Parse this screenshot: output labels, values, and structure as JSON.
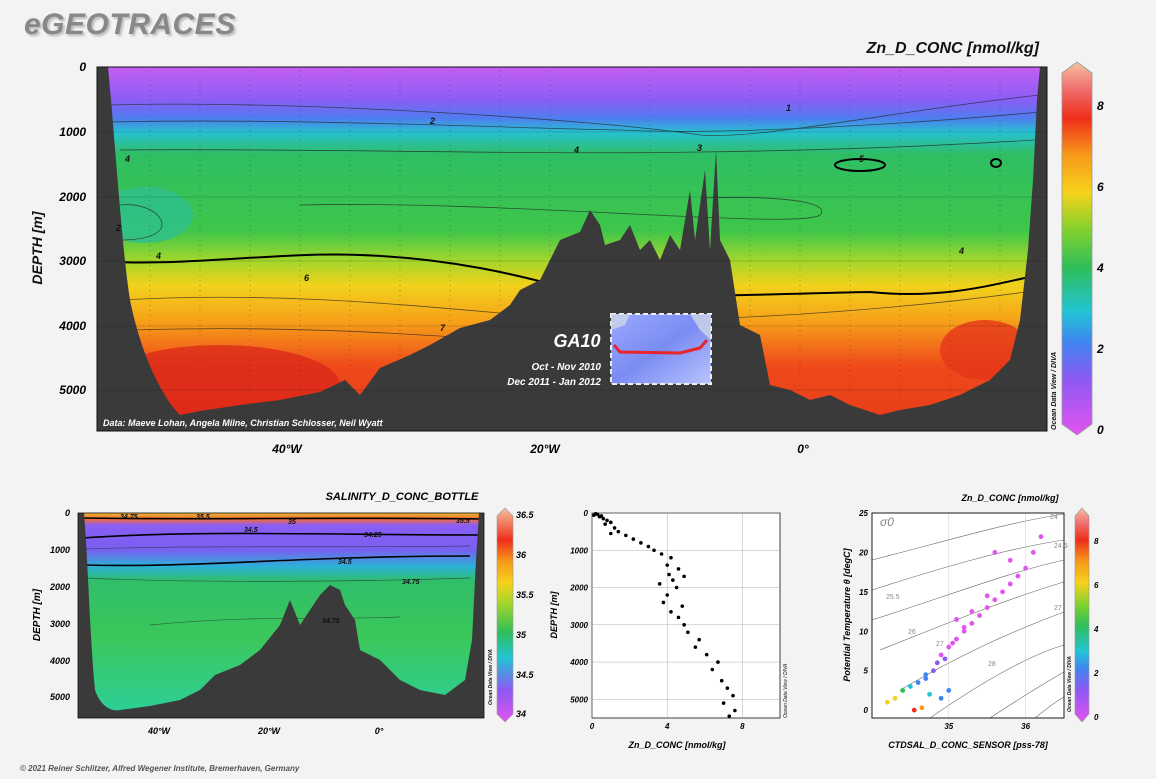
{
  "brand": "eGEOTRACES",
  "footer": "© 2021 Reiner Schlitzer, Alfred Wegener Institute, Bremerhaven, Germany",
  "side_credit": "Ocean Data View / DIVA",
  "colors": {
    "seafloor": "#3a3a3a",
    "scale": [
      "#e254f0",
      "#9c55f3",
      "#4f7cf0",
      "#27c1e0",
      "#2ec06b",
      "#46c83a",
      "#a4d72a",
      "#f6d21c",
      "#f7a019",
      "#ef3a1a",
      "#f06a6a",
      "#f4b8b8"
    ]
  },
  "main": {
    "title": "Zn_D_CONC [nmol/kg]",
    "ylabel": "DEPTH [m]",
    "credit": "Data: Maeve Lohan, Angela Milne, Christian Schlosser, Neil Wyatt",
    "inset": {
      "cruise": "GA10",
      "date1": "Oct - Nov 2010",
      "date2": "Dec 2011 - Jan 2012"
    },
    "contour_labels": [
      "1",
      "2",
      "3",
      "4",
      "4",
      "4",
      "4",
      "5",
      "6",
      "7",
      "2"
    ]
  },
  "chart_data": [
    {
      "type": "heatmap",
      "title": "Zn_D_CONC [nmol/kg]",
      "xlabel": "",
      "ylabel": "DEPTH [m]",
      "x_ticks": [
        "40°W",
        "20°W",
        "0°"
      ],
      "y_ticks": [
        "0",
        "1000",
        "2000",
        "3000",
        "4000",
        "5000"
      ],
      "ylim": [
        0,
        5600
      ],
      "colorbar": {
        "min": 0,
        "max": 9,
        "ticks": [
          "0",
          "2",
          "4",
          "6",
          "8"
        ]
      }
    },
    {
      "type": "heatmap",
      "title": "SALINITY_D_CONC_BOTTLE",
      "xlabel": "",
      "ylabel": "DEPTH [m]",
      "x_ticks": [
        "40°W",
        "20°W",
        "0°"
      ],
      "y_ticks": [
        "0",
        "1000",
        "2000",
        "3000",
        "4000",
        "5000"
      ],
      "ylim": [
        0,
        5500
      ],
      "colorbar": {
        "min": 34,
        "max": 36.5,
        "ticks": [
          "34",
          "34.5",
          "35",
          "35.5",
          "36",
          "36.5"
        ]
      },
      "contour_labels": [
        "34.75",
        "35",
        "35.5",
        "34.5",
        "34.25",
        "34.5",
        "34.75",
        "34.75",
        "35.5"
      ]
    },
    {
      "type": "scatter",
      "xlabel": "Zn_D_CONC [nmol/kg]",
      "ylabel": "DEPTH [m]",
      "x_ticks": [
        "0",
        "4",
        "8"
      ],
      "y_ticks": [
        "0",
        "1000",
        "2000",
        "3000",
        "4000",
        "5000"
      ],
      "xlim": [
        0,
        10
      ],
      "ylim": [
        0,
        5500
      ],
      "points": [
        [
          0.2,
          20
        ],
        [
          0.3,
          40
        ],
        [
          0.1,
          60
        ],
        [
          0.5,
          80
        ],
        [
          0.4,
          100
        ],
        [
          0.6,
          150
        ],
        [
          0.8,
          200
        ],
        [
          1.0,
          250
        ],
        [
          0.7,
          300
        ],
        [
          1.2,
          400
        ],
        [
          1.4,
          500
        ],
        [
          1.0,
          550
        ],
        [
          1.8,
          600
        ],
        [
          2.2,
          700
        ],
        [
          2.6,
          800
        ],
        [
          3.0,
          900
        ],
        [
          3.3,
          1000
        ],
        [
          3.7,
          1100
        ],
        [
          4.2,
          1200
        ],
        [
          4.0,
          1400
        ],
        [
          4.6,
          1500
        ],
        [
          4.1,
          1650
        ],
        [
          4.9,
          1700
        ],
        [
          4.3,
          1800
        ],
        [
          3.6,
          1900
        ],
        [
          4.5,
          2000
        ],
        [
          4.0,
          2200
        ],
        [
          3.8,
          2400
        ],
        [
          4.8,
          2500
        ],
        [
          4.2,
          2650
        ],
        [
          4.6,
          2800
        ],
        [
          4.9,
          3000
        ],
        [
          5.1,
          3200
        ],
        [
          5.7,
          3400
        ],
        [
          5.5,
          3600
        ],
        [
          6.1,
          3800
        ],
        [
          6.7,
          4000
        ],
        [
          6.4,
          4200
        ],
        [
          6.9,
          4500
        ],
        [
          7.2,
          4700
        ],
        [
          7.5,
          4900
        ],
        [
          7.0,
          5100
        ],
        [
          7.6,
          5300
        ],
        [
          7.3,
          5450
        ]
      ]
    },
    {
      "type": "scatter",
      "title": "Zn_D_CONC [nmol/kg]",
      "xlabel": "CTDSAL_D_CONC_SENSOR [pss-78]",
      "ylabel": "Potential Temperature θ [degC]",
      "sigma_label": "σ0",
      "x_ticks": [
        "35",
        "36"
      ],
      "y_ticks": [
        "0",
        "5",
        "10",
        "15",
        "20",
        "25"
      ],
      "xlim": [
        34.0,
        36.5
      ],
      "ylim": [
        -1,
        25
      ],
      "isopycnal_labels": [
        "24",
        "24.5",
        "25.5",
        "26",
        "27",
        "27",
        "28"
      ],
      "colorbar": {
        "min": 0,
        "max": 9,
        "ticks": [
          "0",
          "2",
          "4",
          "6",
          "8"
        ]
      },
      "points": [
        [
          34.2,
          1.0,
          6.5
        ],
        [
          34.3,
          1.5,
          6.0
        ],
        [
          34.4,
          2.5,
          4.5
        ],
        [
          34.5,
          3.0,
          3.5
        ],
        [
          34.6,
          3.5,
          2.8
        ],
        [
          34.7,
          4.0,
          2.5
        ],
        [
          34.8,
          5.0,
          2.0
        ],
        [
          34.85,
          6.0,
          1.5
        ],
        [
          34.9,
          7.0,
          1.2
        ],
        [
          35.0,
          8.0,
          1.0
        ],
        [
          35.1,
          9.0,
          0.8
        ],
        [
          35.2,
          10.0,
          0.6
        ],
        [
          35.3,
          11.0,
          0.5
        ],
        [
          35.4,
          12.0,
          0.4
        ],
        [
          35.5,
          13.0,
          0.3
        ],
        [
          35.6,
          14.0,
          0.4
        ],
        [
          35.7,
          15.0,
          0.3
        ],
        [
          35.8,
          16.0,
          0.4
        ],
        [
          35.9,
          17.0,
          0.3
        ],
        [
          36.0,
          18.0,
          0.5
        ],
        [
          35.6,
          20.0,
          0.4
        ],
        [
          35.8,
          19.0,
          0.6
        ],
        [
          35.3,
          12.5,
          0.7
        ],
        [
          35.1,
          11.5,
          0.9
        ],
        [
          34.95,
          6.5,
          1.8
        ],
        [
          34.75,
          2.0,
          3.0
        ],
        [
          34.9,
          1.5,
          2.5
        ],
        [
          35.0,
          2.5,
          2.2
        ],
        [
          34.65,
          0.3,
          7.5
        ],
        [
          34.55,
          0.0,
          8.0
        ],
        [
          34.7,
          4.5,
          2.6
        ],
        [
          35.5,
          14.5,
          0.4
        ],
        [
          35.2,
          10.5,
          0.7
        ],
        [
          35.05,
          8.5,
          0.9
        ],
        [
          36.2,
          22.0,
          0.3
        ],
        [
          36.1,
          20.0,
          0.4
        ]
      ]
    }
  ],
  "contour_labels_bl": [
    "34.75",
    "35",
    "35.5",
    "34.5",
    "34.25",
    "34.5",
    "34.75",
    "34.75",
    "35.5"
  ]
}
